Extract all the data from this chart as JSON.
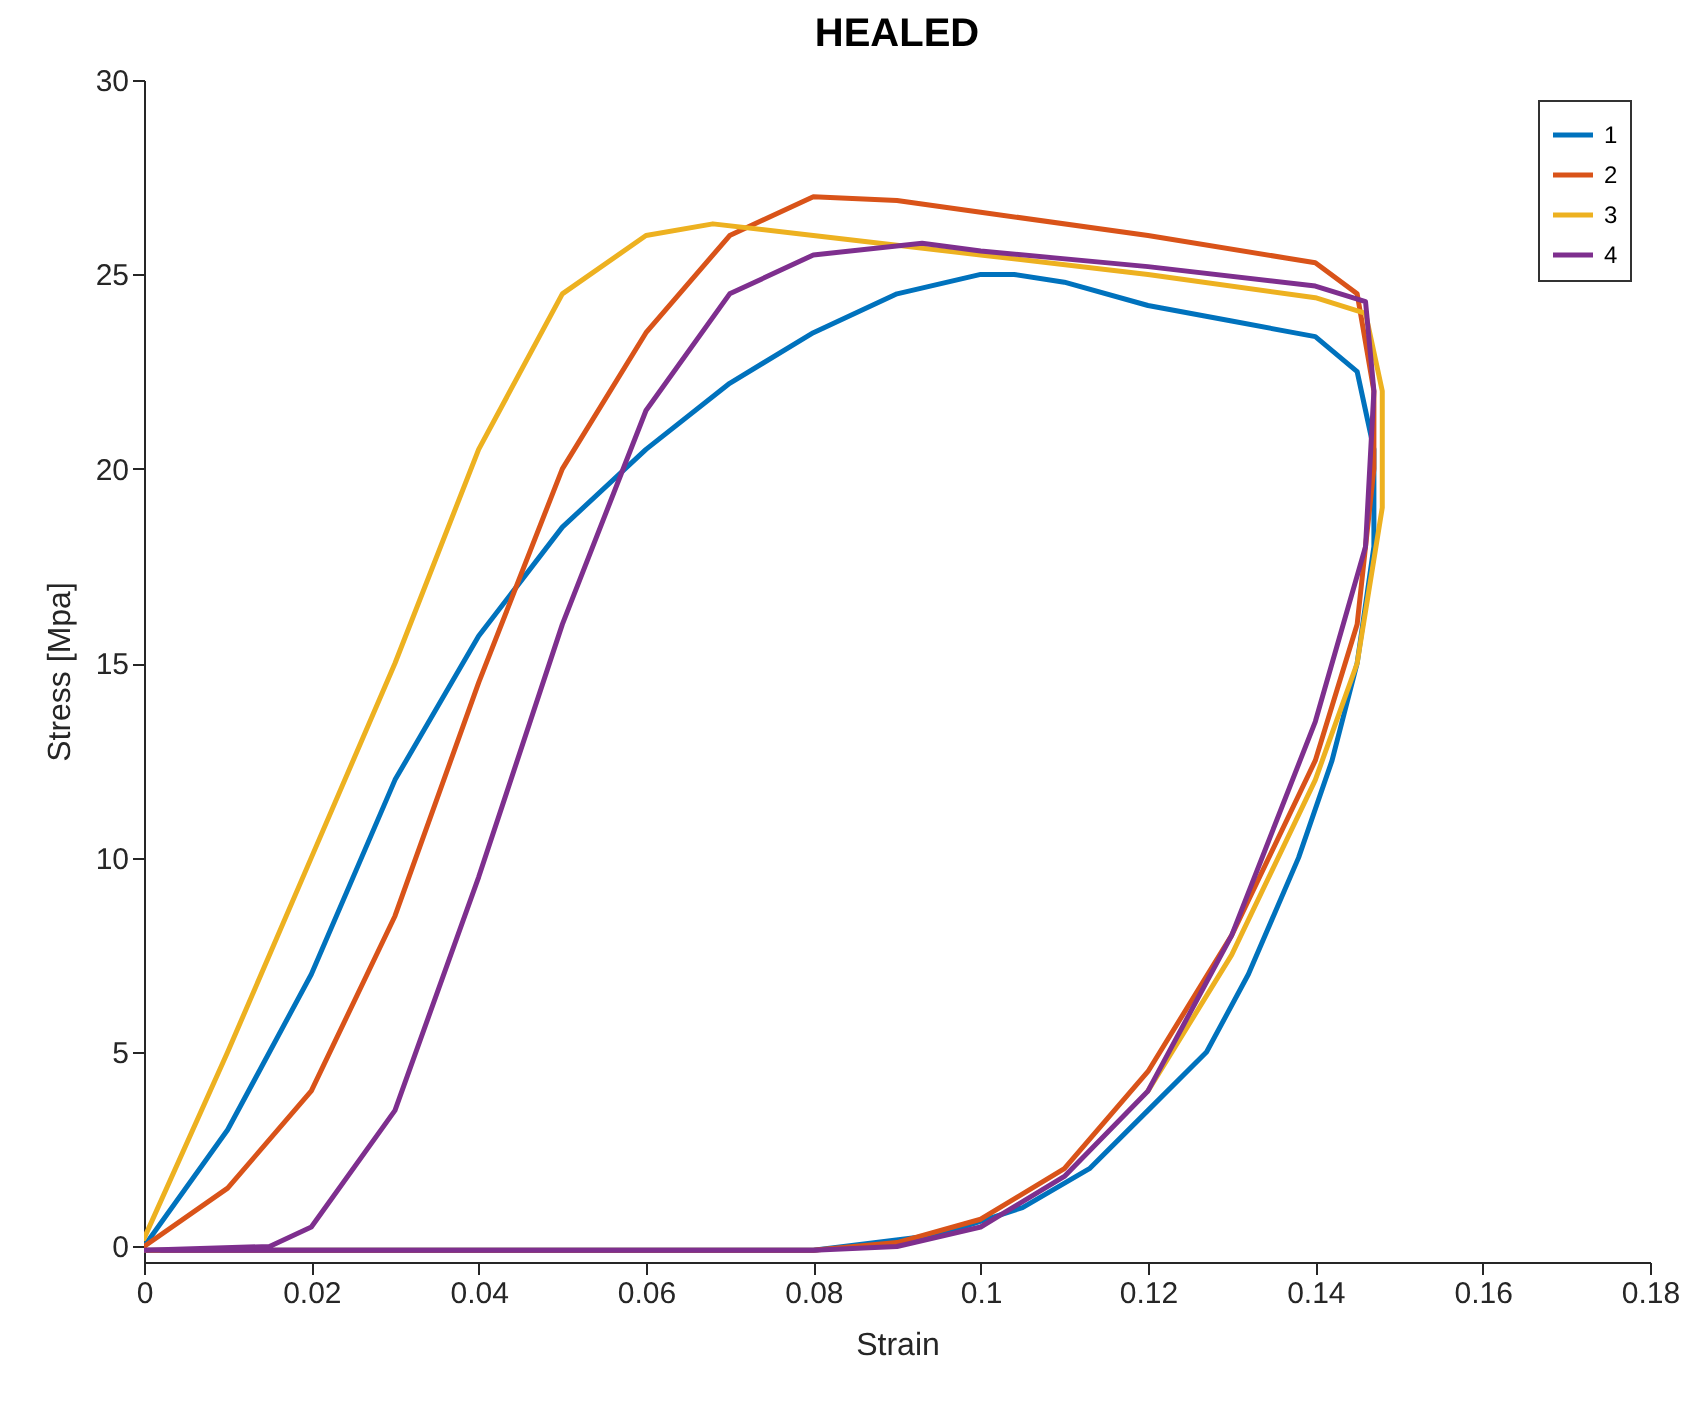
{
  "chart_data": {
    "type": "line",
    "title": "HEALED",
    "xlabel": "Strain",
    "ylabel": "Stress [Mpa]",
    "xlim": [
      0,
      0.18
    ],
    "xticks": [
      0,
      0.02,
      0.04,
      0.06,
      0.08,
      0.1,
      0.12,
      0.14,
      0.16,
      0.18
    ],
    "ylim": [
      -0.4,
      30
    ],
    "yticks": [
      0,
      5,
      10,
      15,
      20,
      25,
      30
    ],
    "grid": false,
    "legend": "top right",
    "marker": "none",
    "line_style": "solid",
    "series": [
      {
        "name": "1",
        "color": "#0072bd",
        "x": [
          0,
          0.01,
          0.02,
          0.03,
          0.04,
          0.05,
          0.06,
          0.07,
          0.08,
          0.09,
          0.1,
          0.104,
          0.11,
          0.12,
          0.13,
          0.14,
          0.145,
          0.147,
          0.147,
          0.145,
          0.142,
          0.138,
          0.132,
          0.127,
          0.12,
          0.113,
          0.105,
          0.095,
          0.08,
          0.04,
          0
        ],
        "values": [
          0,
          3,
          7,
          12,
          15.7,
          18.5,
          20.5,
          22.2,
          23.5,
          24.5,
          25,
          25,
          24.8,
          24.2,
          23.8,
          23.4,
          22.5,
          20.5,
          18,
          15,
          12.5,
          10,
          7,
          5,
          3.5,
          2,
          1,
          0.3,
          -0.1,
          -0.1,
          -0.1
        ]
      },
      {
        "name": "2",
        "color": "#d95319",
        "x": [
          0,
          0.01,
          0.02,
          0.03,
          0.04,
          0.05,
          0.06,
          0.07,
          0.08,
          0.09,
          0.1,
          0.12,
          0.14,
          0.145,
          0.147,
          0.147,
          0.145,
          0.14,
          0.13,
          0.12,
          0.11,
          0.1,
          0.09,
          0.08,
          0.02,
          0
        ],
        "values": [
          0,
          1.5,
          4,
          8.5,
          14.5,
          20,
          23.5,
          26,
          27,
          26.9,
          26.6,
          26,
          25.3,
          24.5,
          22,
          20,
          16,
          12.5,
          8,
          4.5,
          2,
          0.7,
          0.1,
          -0.1,
          -0.1,
          -0.1
        ]
      },
      {
        "name": "3",
        "color": "#edb120",
        "x": [
          0,
          0.01,
          0.02,
          0.03,
          0.04,
          0.05,
          0.06,
          0.068,
          0.08,
          0.1,
          0.12,
          0.14,
          0.146,
          0.148,
          0.148,
          0.145,
          0.14,
          0.13,
          0.12
        ],
        "values": [
          0.2,
          5,
          10,
          15,
          20.5,
          24.5,
          26,
          26.3,
          26,
          25.5,
          25,
          24.4,
          24,
          22,
          19,
          15,
          12,
          7.5,
          4
        ]
      },
      {
        "name": "4",
        "color": "#7e2f8e",
        "x": [
          0,
          0.015,
          0.02,
          0.03,
          0.04,
          0.05,
          0.06,
          0.07,
          0.08,
          0.093,
          0.1,
          0.12,
          0.14,
          0.146,
          0.147,
          0.146,
          0.14,
          0.13,
          0.12,
          0.11,
          0.1,
          0.09,
          0.08,
          0.002
        ],
        "values": [
          -0.1,
          0,
          0.5,
          3.5,
          9.5,
          16,
          21.5,
          24.5,
          25.5,
          25.8,
          25.6,
          25.2,
          24.7,
          24.3,
          22,
          18,
          13.5,
          8,
          4,
          1.8,
          0.5,
          0,
          -0.1,
          -0.1
        ]
      }
    ]
  }
}
